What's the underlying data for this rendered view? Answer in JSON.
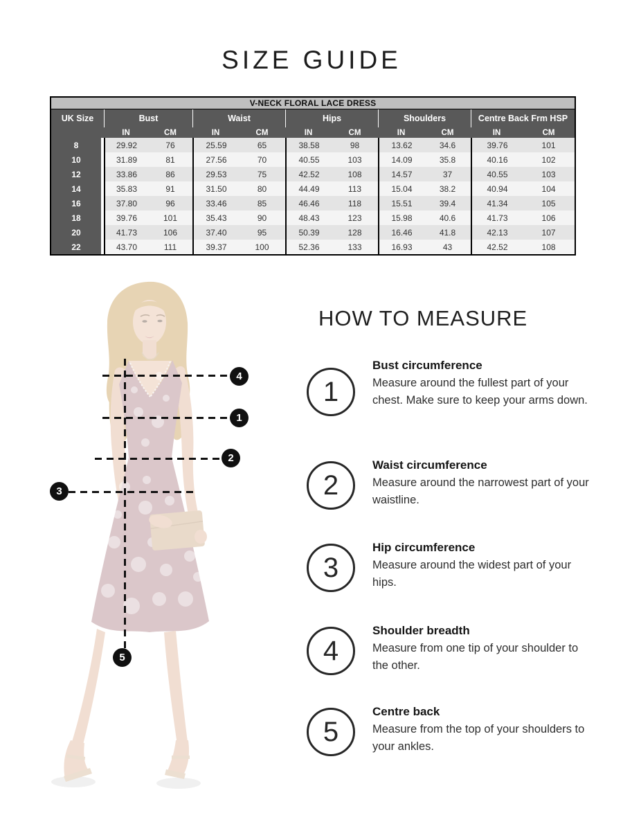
{
  "page_title": "SIZE GUIDE",
  "table": {
    "title": "V-NECK FLORAL LACE DRESS",
    "size_col_header": "UK Size",
    "units": [
      "IN",
      "CM"
    ],
    "groups": [
      {
        "label": "Bust"
      },
      {
        "label": "Waist"
      },
      {
        "label": "Hips"
      },
      {
        "label": "Shoulders"
      },
      {
        "label": "Centre Back Frm HSP"
      }
    ],
    "rows": [
      {
        "size": "8",
        "values": [
          "29.92",
          "76",
          "25.59",
          "65",
          "38.58",
          "98",
          "13.62",
          "34.6",
          "39.76",
          "101"
        ]
      },
      {
        "size": "10",
        "values": [
          "31.89",
          "81",
          "27.56",
          "70",
          "40.55",
          "103",
          "14.09",
          "35.8",
          "40.16",
          "102"
        ]
      },
      {
        "size": "12",
        "values": [
          "33.86",
          "86",
          "29.53",
          "75",
          "42.52",
          "108",
          "14.57",
          "37",
          "40.55",
          "103"
        ]
      },
      {
        "size": "14",
        "values": [
          "35.83",
          "91",
          "31.50",
          "80",
          "44.49",
          "113",
          "15.04",
          "38.2",
          "40.94",
          "104"
        ]
      },
      {
        "size": "16",
        "values": [
          "37.80",
          "96",
          "33.46",
          "85",
          "46.46",
          "118",
          "15.51",
          "39.4",
          "41.34",
          "105"
        ]
      },
      {
        "size": "18",
        "values": [
          "39.76",
          "101",
          "35.43",
          "90",
          "48.43",
          "123",
          "15.98",
          "40.6",
          "41.73",
          "106"
        ]
      },
      {
        "size": "20",
        "values": [
          "41.73",
          "106",
          "37.40",
          "95",
          "50.39",
          "128",
          "16.46",
          "41.8",
          "42.13",
          "107"
        ]
      },
      {
        "size": "22",
        "values": [
          "43.70",
          "111",
          "39.37",
          "100",
          "52.36",
          "133",
          "16.93",
          "43",
          "42.52",
          "108"
        ]
      }
    ]
  },
  "figure": {
    "badges": [
      "1",
      "2",
      "3",
      "4",
      "5"
    ]
  },
  "how_to_measure": {
    "title": "HOW TO MEASURE",
    "steps": [
      {
        "number": "1",
        "heading": "Bust circumference",
        "description": "Measure around the fullest part of your chest. Make sure to keep your arms down."
      },
      {
        "number": "2",
        "heading": "Waist circumference",
        "description": "Measure around the narrowest part of your waistline."
      },
      {
        "number": "3",
        "heading": "Hip circumference",
        "description": "Measure around the widest part of your hips."
      },
      {
        "number": "4",
        "heading": "Shoulder breadth",
        "description": "Measure from one tip of your shoulder to the other."
      },
      {
        "number": "5",
        "heading": "Centre back",
        "description": "Measure from the top of your shoulders to your ankles."
      }
    ]
  },
  "colors": {
    "table_title_bg": "#bfbfbf",
    "table_header_bg": "#595959",
    "row_stripe_dark": "#e4e4e4",
    "row_stripe_light": "#f4f4f4",
    "badge_bg": "#101010",
    "text_dark": "#1c1c1c"
  }
}
